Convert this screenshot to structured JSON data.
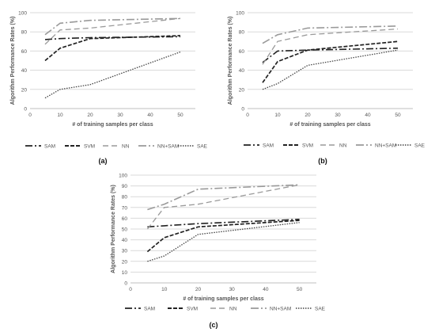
{
  "chart_data": [
    {
      "type": "line",
      "panel_label": "(a)",
      "xlabel": "# of training samples per class",
      "ylabel": "Algorithm Performance Rates (%)",
      "xlim": [
        0,
        55
      ],
      "ylim": [
        0,
        100
      ],
      "x_ticks": [
        0,
        10,
        20,
        30,
        40,
        50
      ],
      "y_ticks": [
        0,
        20,
        40,
        60,
        80,
        100
      ],
      "grid": "horizontal",
      "x": [
        5,
        10,
        20,
        50
      ],
      "series": [
        {
          "name": "SAM",
          "values": [
            72,
            73,
            74,
            75
          ]
        },
        {
          "name": "SVM",
          "values": [
            50,
            63,
            73,
            76
          ]
        },
        {
          "name": "NN",
          "values": [
            67,
            82,
            84,
            94
          ]
        },
        {
          "name": "NN+SAM",
          "values": [
            77,
            89,
            92,
            94
          ]
        },
        {
          "name": "SAE",
          "values": [
            11,
            20,
            25,
            59
          ]
        }
      ]
    },
    {
      "type": "line",
      "panel_label": "(b)",
      "xlabel": "# of training samples per class",
      "ylabel": "Algorithm Performance Rates (%)",
      "xlim": [
        0,
        55
      ],
      "ylim": [
        0,
        100
      ],
      "x_ticks": [
        0,
        10,
        20,
        30,
        40,
        50
      ],
      "y_ticks": [
        0,
        20,
        40,
        60,
        80,
        100
      ],
      "grid": "horizontal",
      "x": [
        5,
        10,
        20,
        50
      ],
      "series": [
        {
          "name": "SAM",
          "values": [
            48,
            60,
            61,
            63
          ]
        },
        {
          "name": "SVM",
          "values": [
            27,
            49,
            61,
            70
          ]
        },
        {
          "name": "NN",
          "values": [
            46,
            70,
            77,
            83
          ]
        },
        {
          "name": "NN+SAM",
          "values": [
            68,
            77,
            84,
            86
          ]
        },
        {
          "name": "SAE",
          "values": [
            20,
            26,
            45,
            61
          ]
        }
      ]
    },
    {
      "type": "line",
      "panel_label": "(c)",
      "xlabel": "# of training samples per class",
      "ylabel": "Algorithm Performance Rates (%)",
      "xlim": [
        0,
        55
      ],
      "ylim": [
        0,
        100
      ],
      "x_ticks": [
        0,
        10,
        20,
        30,
        40,
        50
      ],
      "y_ticks": [
        0,
        10,
        20,
        30,
        40,
        50,
        60,
        70,
        80,
        90,
        100
      ],
      "grid": "horizontal",
      "x": [
        5,
        10,
        20,
        50
      ],
      "series": [
        {
          "name": "SAM",
          "values": [
            52,
            53,
            55,
            59
          ]
        },
        {
          "name": "SVM",
          "values": [
            29,
            42,
            52,
            58
          ]
        },
        {
          "name": "NN",
          "values": [
            50,
            70,
            73,
            91
          ]
        },
        {
          "name": "NN+SAM",
          "values": [
            68,
            73,
            87,
            91
          ]
        },
        {
          "name": "SAE",
          "values": [
            20,
            25,
            45,
            56
          ]
        }
      ]
    }
  ],
  "style": {
    "series_colors": {
      "SAM": "#222222",
      "SVM": "#222222",
      "NN": "#9a9a9a",
      "NN+SAM": "#9a9a9a",
      "SAE": "#444444"
    },
    "grid_color": "#d9d9d9",
    "axis_color": "#bfbfbf",
    "text_color": "#555555"
  }
}
